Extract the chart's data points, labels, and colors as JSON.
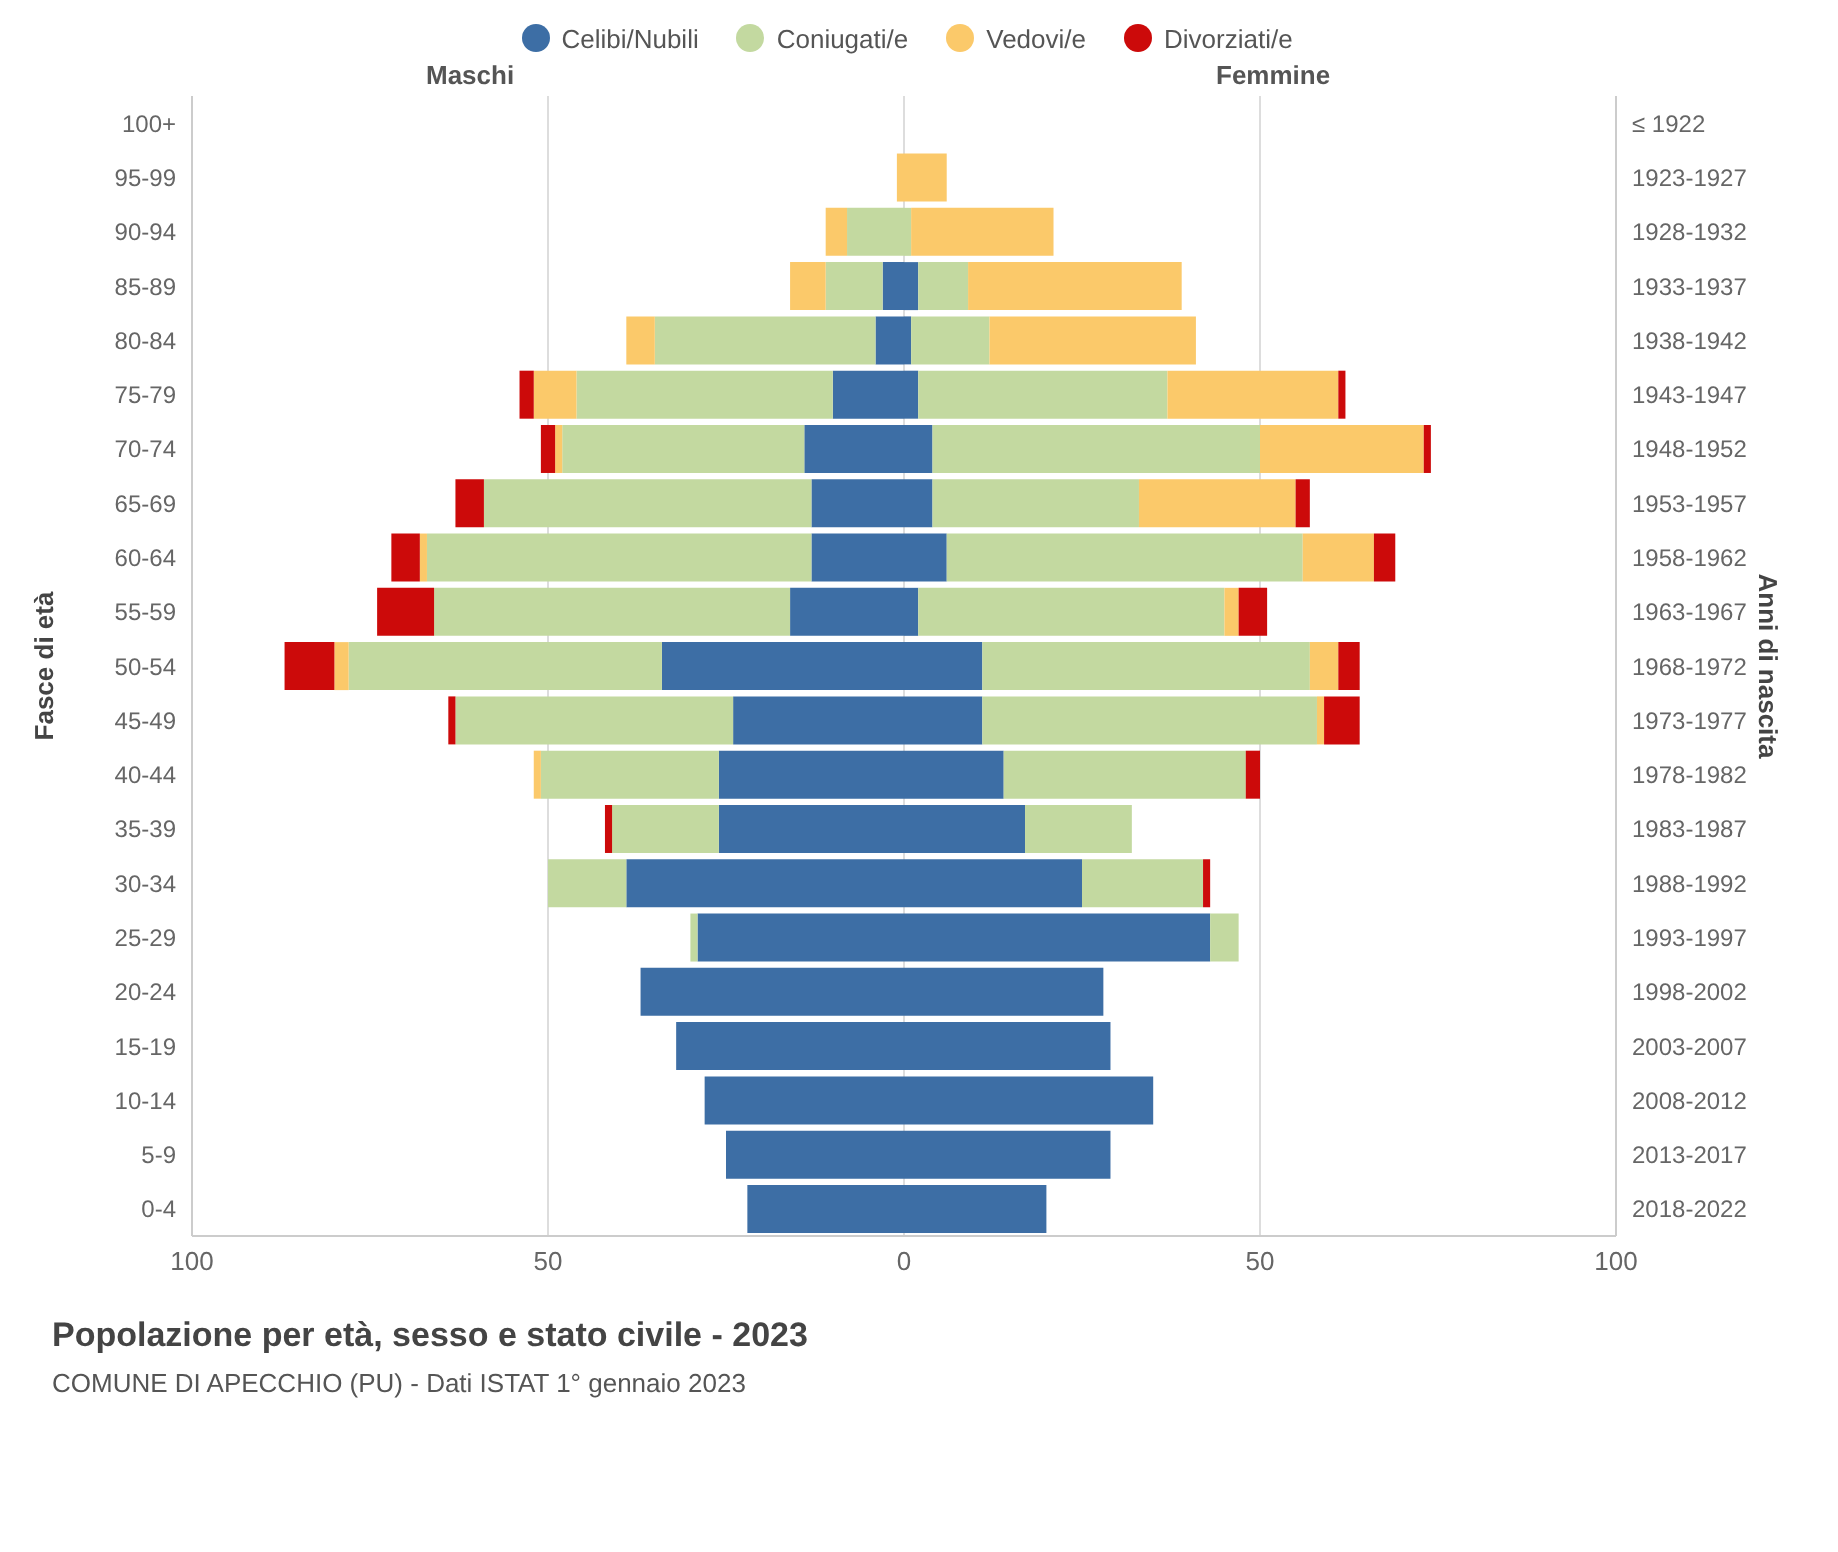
{
  "chart_data": {
    "type": "bar",
    "orientation": "horizontal",
    "stacked": true,
    "title": "Popolazione per età, sesso e stato civile - 2023",
    "subtitle": "COMUNE DI APECCHIO (PU) - Dati ISTAT 1° gennaio 2023",
    "ylabel": "Fasce di età",
    "y2label": "Anni di nascita",
    "annotations": [
      "Maschi",
      "Femmine"
    ],
    "categories": [
      "100+",
      "95-99",
      "90-94",
      "85-89",
      "80-84",
      "75-79",
      "70-74",
      "65-69",
      "60-64",
      "55-59",
      "50-54",
      "45-49",
      "40-44",
      "35-39",
      "30-34",
      "25-29",
      "20-24",
      "15-19",
      "10-14",
      "5-9",
      "0-4"
    ],
    "y2_categories": [
      "≤ 1922",
      "1923-1927",
      "1928-1932",
      "1933-1937",
      "1938-1942",
      "1943-1947",
      "1948-1952",
      "1953-1957",
      "1958-1962",
      "1963-1967",
      "1968-1972",
      "1973-1977",
      "1978-1982",
      "1983-1987",
      "1988-1992",
      "1993-1997",
      "1998-2002",
      "2003-2007",
      "2008-2012",
      "2013-2017",
      "2018-2022"
    ],
    "series": [
      {
        "name": "Celibi/Nubili",
        "color": "#3d6ea5",
        "values": [
          0,
          0,
          0,
          -3,
          -4,
          -10,
          -14,
          -13,
          -13,
          -16,
          -34,
          -24,
          -26,
          -26,
          -39,
          -29,
          -37,
          -32,
          -28,
          -25,
          -22
        ]
      },
      {
        "name": "Coniugati/e",
        "color": "#c3d9a0",
        "values": [
          0,
          0,
          -8,
          -8,
          -31,
          -36,
          -34,
          -46,
          -54,
          -50,
          -44,
          -39,
          -25,
          -15,
          -11,
          -1,
          0,
          0,
          0,
          0,
          0
        ]
      },
      {
        "name": "Vedovi/e",
        "color": "#fbc96a",
        "values": [
          0,
          -1,
          -3,
          -5,
          -4,
          -6,
          -1,
          0,
          -1,
          0,
          -2,
          0,
          -1,
          0,
          0,
          0,
          0,
          0,
          0,
          0,
          0
        ]
      },
      {
        "name": "Divorziati/e",
        "color": "#cc0a0a",
        "values": [
          0,
          0,
          0,
          0,
          0,
          -2,
          -2,
          -4,
          -4,
          -8,
          -7,
          -1,
          0,
          -1,
          0,
          0,
          0,
          0,
          0,
          0,
          0
        ]
      },
      {
        "color": "#3d6ea5",
        "values": [
          0,
          0,
          0,
          2,
          1,
          2,
          4,
          4,
          6,
          2,
          11,
          11,
          14,
          17,
          25,
          43,
          28,
          29,
          35,
          29,
          20
        ]
      },
      {
        "color": "#c3d9a0",
        "values": [
          0,
          0,
          1,
          7,
          11,
          35,
          46,
          29,
          50,
          43,
          46,
          47,
          34,
          15,
          17,
          4,
          0,
          0,
          0,
          0,
          0
        ]
      },
      {
        "color": "#fbc96a",
        "values": [
          0,
          6,
          20,
          30,
          29,
          24,
          23,
          22,
          10,
          2,
          4,
          1,
          0,
          0,
          0,
          0,
          0,
          0,
          0,
          0,
          0
        ]
      },
      {
        "color": "#cc0a0a",
        "values": [
          0,
          0,
          0,
          0,
          0,
          1,
          1,
          2,
          3,
          4,
          3,
          5,
          2,
          0,
          1,
          0,
          0,
          0,
          0,
          0,
          0
        ]
      }
    ],
    "xlim": [
      -100,
      100
    ],
    "xticks": [
      {
        "value": -100,
        "label": "100"
      },
      {
        "value": -50,
        "label": "50"
      },
      0,
      50,
      100
    ],
    "grid": "x",
    "legend": "top"
  }
}
